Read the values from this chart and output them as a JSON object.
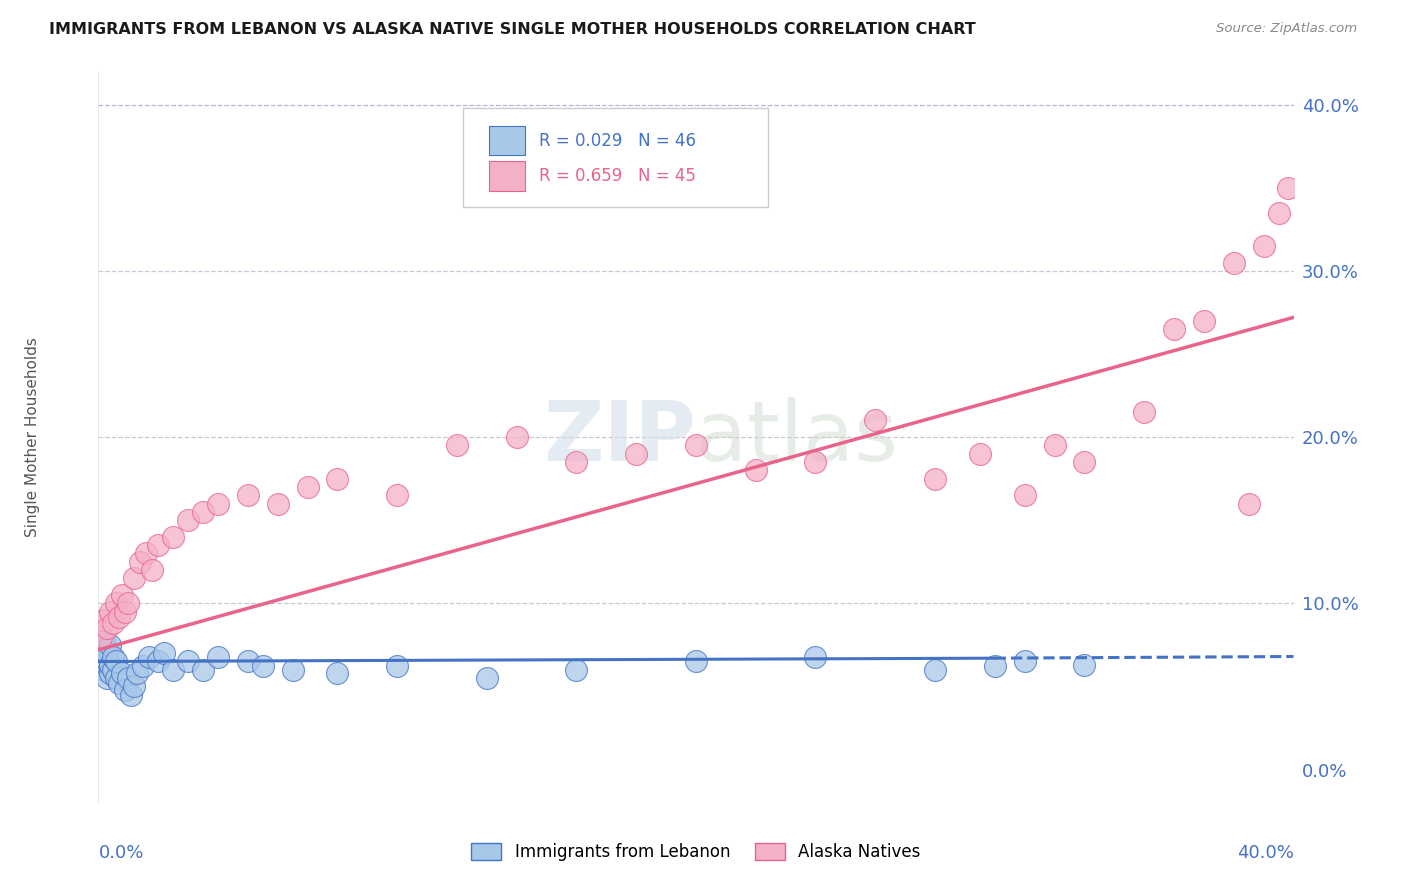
{
  "title": "IMMIGRANTS FROM LEBANON VS ALASKA NATIVE SINGLE MOTHER HOUSEHOLDS CORRELATION CHART",
  "source": "Source: ZipAtlas.com",
  "ylabel": "Single Mother Households",
  "legend_label1": "Immigrants from Lebanon",
  "legend_label2": "Alaska Natives",
  "R1": 0.029,
  "N1": 46,
  "R2": 0.659,
  "N2": 45,
  "color_blue": "#a8c8e8",
  "color_pink": "#f4b0c8",
  "color_blue_line": "#4472c4",
  "color_pink_line": "#e8648a",
  "watermark_color": "#d0dce8",
  "blue_points_x": [
    0.001,
    0.001,
    0.001,
    0.001,
    0.002,
    0.002,
    0.002,
    0.002,
    0.003,
    0.003,
    0.003,
    0.004,
    0.004,
    0.004,
    0.005,
    0.005,
    0.006,
    0.006,
    0.007,
    0.008,
    0.009,
    0.01,
    0.011,
    0.012,
    0.013,
    0.015,
    0.017,
    0.02,
    0.022,
    0.025,
    0.03,
    0.035,
    0.04,
    0.05,
    0.055,
    0.065,
    0.08,
    0.1,
    0.13,
    0.16,
    0.2,
    0.24,
    0.28,
    0.3,
    0.31,
    0.33
  ],
  "blue_points_y": [
    0.065,
    0.07,
    0.075,
    0.08,
    0.06,
    0.068,
    0.072,
    0.078,
    0.055,
    0.065,
    0.07,
    0.058,
    0.063,
    0.075,
    0.06,
    0.068,
    0.055,
    0.065,
    0.052,
    0.058,
    0.048,
    0.055,
    0.045,
    0.05,
    0.058,
    0.062,
    0.068,
    0.065,
    0.07,
    0.06,
    0.065,
    0.06,
    0.068,
    0.065,
    0.062,
    0.06,
    0.058,
    0.062,
    0.055,
    0.06,
    0.065,
    0.068,
    0.06,
    0.062,
    0.065,
    0.063
  ],
  "pink_points_x": [
    0.001,
    0.002,
    0.003,
    0.004,
    0.005,
    0.006,
    0.007,
    0.008,
    0.009,
    0.01,
    0.012,
    0.014,
    0.016,
    0.018,
    0.02,
    0.025,
    0.03,
    0.035,
    0.04,
    0.05,
    0.06,
    0.07,
    0.08,
    0.1,
    0.12,
    0.14,
    0.16,
    0.18,
    0.2,
    0.22,
    0.24,
    0.26,
    0.28,
    0.295,
    0.31,
    0.32,
    0.33,
    0.35,
    0.36,
    0.37,
    0.38,
    0.385,
    0.39,
    0.395,
    0.398
  ],
  "pink_points_y": [
    0.08,
    0.09,
    0.085,
    0.095,
    0.088,
    0.1,
    0.092,
    0.105,
    0.095,
    0.1,
    0.115,
    0.125,
    0.13,
    0.12,
    0.135,
    0.14,
    0.15,
    0.155,
    0.16,
    0.165,
    0.16,
    0.17,
    0.175,
    0.165,
    0.195,
    0.2,
    0.185,
    0.19,
    0.195,
    0.18,
    0.185,
    0.21,
    0.175,
    0.19,
    0.165,
    0.195,
    0.185,
    0.215,
    0.265,
    0.27,
    0.305,
    0.16,
    0.315,
    0.335,
    0.35
  ],
  "blue_line_x0": 0.0,
  "blue_line_x_solid_end": 0.3,
  "blue_line_x1": 0.4,
  "blue_line_y0": 0.065,
  "blue_line_y_solid_end": 0.067,
  "blue_line_y1": 0.068,
  "pink_line_x0": 0.0,
  "pink_line_x_solid_end": 0.4,
  "pink_line_y0": 0.072,
  "pink_line_y_solid_end": 0.272,
  "xlim": [
    0.0,
    0.4
  ],
  "ylim": [
    -0.02,
    0.42
  ],
  "ytick_vals": [
    0.0,
    0.1,
    0.2,
    0.3,
    0.4
  ],
  "grid_color": "#c8c8d8",
  "grid_top_color": "#b0b8d0"
}
